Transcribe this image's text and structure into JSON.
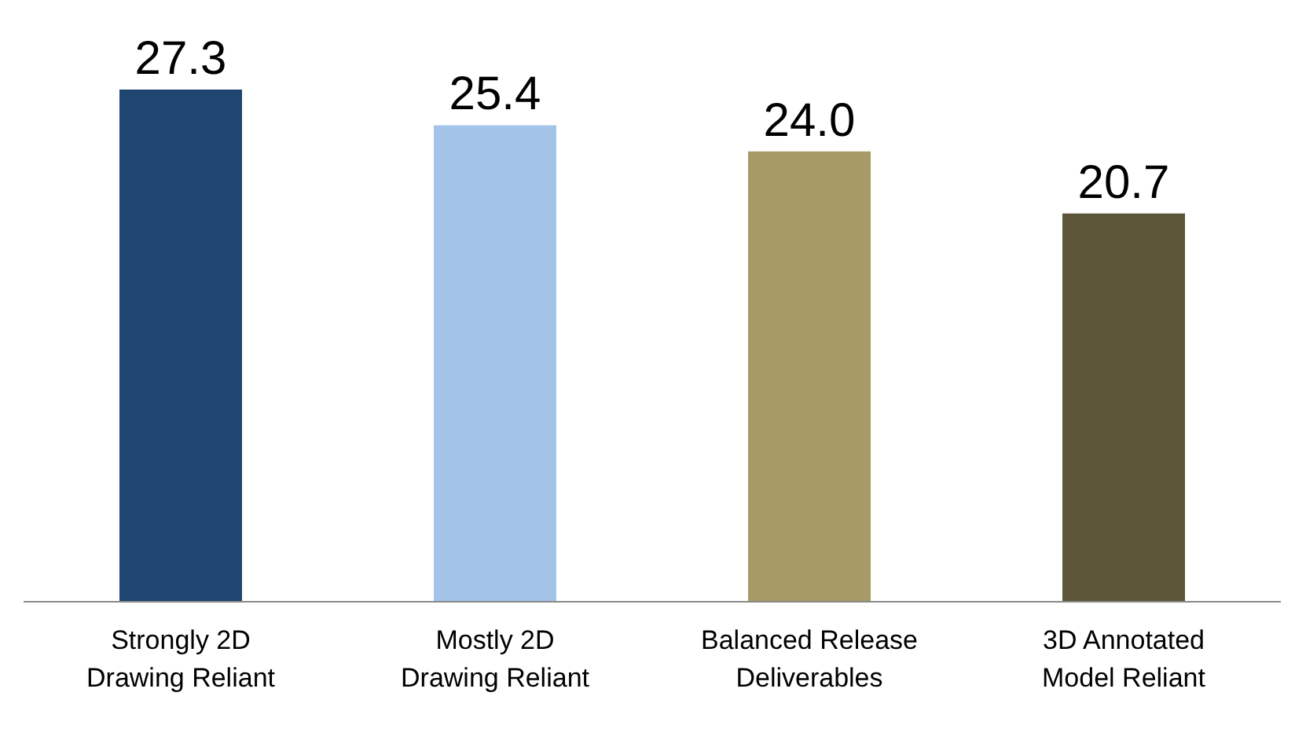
{
  "chart_data": {
    "type": "bar",
    "categories": [
      "Strongly 2D Drawing Reliant",
      "Mostly 2D Drawing Reliant",
      "Balanced Release Deliverables",
      "3D Annotated Model Reliant"
    ],
    "values": [
      27.3,
      25.4,
      24.0,
      20.7
    ],
    "value_labels": [
      "27.3",
      "25.4",
      "24.0",
      "20.7"
    ],
    "colors": [
      "#1f4670",
      "#a3c3e9",
      "#a69a67",
      "#5c5538"
    ]
  }
}
